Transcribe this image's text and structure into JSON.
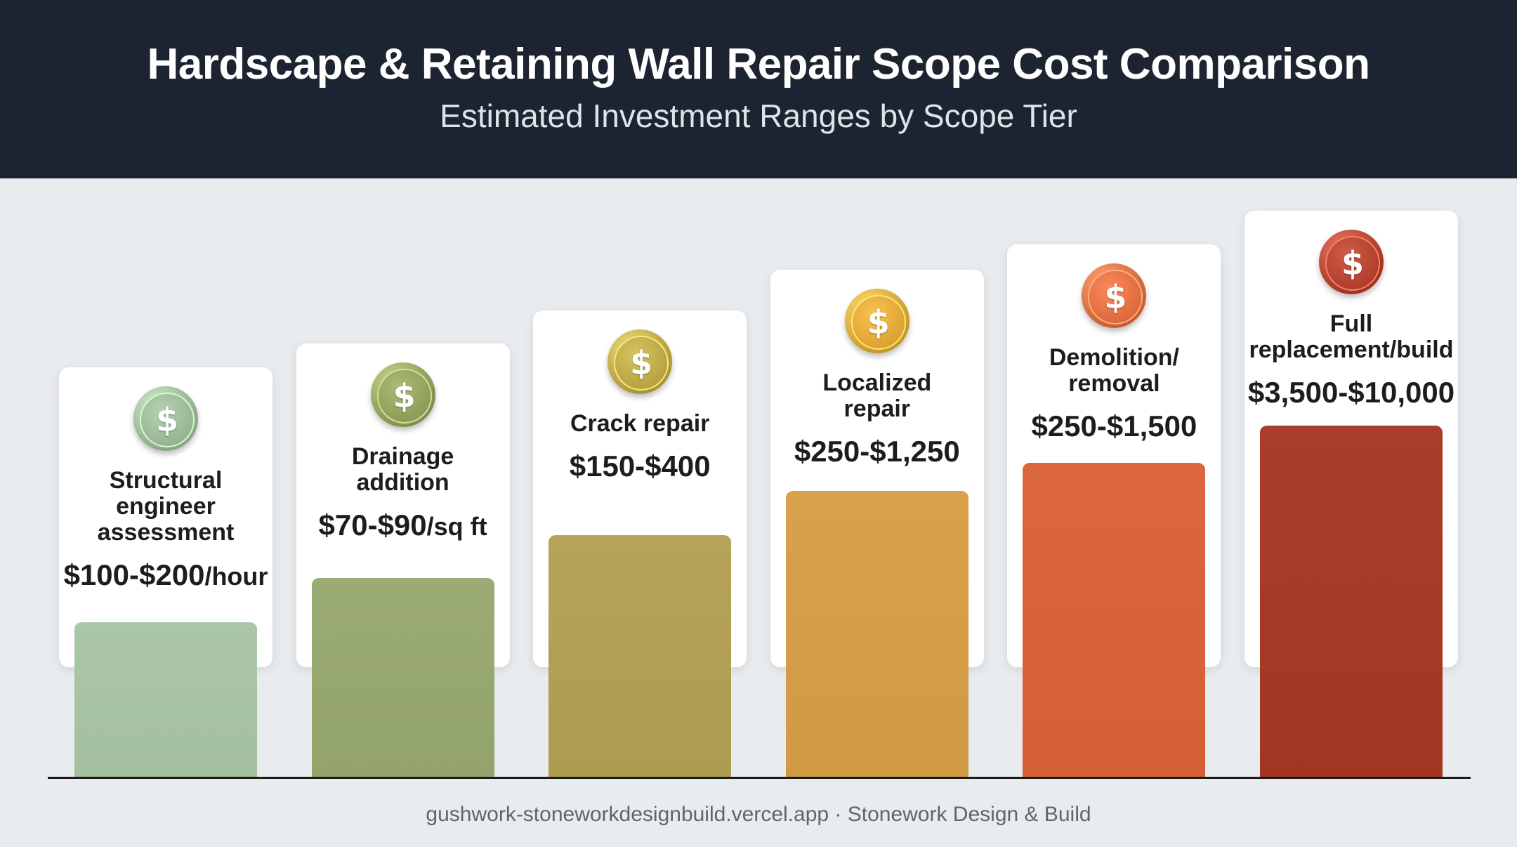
{
  "header": {
    "title": "Hardscape & Retaining Wall Repair Scope Cost Comparison",
    "subtitle": "Estimated Investment Ranges by Scope Tier"
  },
  "footer": {
    "text": "gushwork-stoneworkdesignbuild.vercel.app · Stonework Design & Build"
  },
  "chart_data": {
    "type": "bar",
    "title": "Hardscape & Retaining Wall Repair Scope Cost Comparison",
    "subtitle": "Estimated Investment Ranges by Scope Tier",
    "xlabel": "",
    "ylabel": "",
    "grid": false,
    "legend": "none",
    "categories": [
      "Structural engineer assessment",
      "Drainage addition",
      "Crack repair",
      "Localized repair",
      "Demolition/ removal",
      "Full replacement/build"
    ],
    "values": [
      1,
      2,
      3,
      4,
      5,
      6
    ],
    "items": [
      {
        "label_lines": [
          "Structural",
          "engineer",
          "assessment"
        ],
        "range": "$100-$200",
        "unit": "/hour",
        "level": 1,
        "color": "#a3bfa0",
        "coin_color": "#93b08f",
        "icon": "dollar-coin-icon"
      },
      {
        "label_lines": [
          "Drainage",
          "addition"
        ],
        "range": "$70-$90",
        "unit": "/sq ft",
        "level": 2,
        "color": "#93a36c",
        "coin_color": "#8a9a55",
        "icon": "dollar-coin-icon"
      },
      {
        "label_lines": [
          "Crack repair"
        ],
        "range": "$150-$400",
        "unit": "",
        "level": 3,
        "color": "#ad9c50",
        "coin_color": "#b5a03e",
        "icon": "dollar-coin-icon"
      },
      {
        "label_lines": [
          "Localized",
          "repair"
        ],
        "range": "$250-$1,250",
        "unit": "",
        "level": 4,
        "color": "#d09a45",
        "coin_color": "#d9a030",
        "icon": "dollar-coin-icon"
      },
      {
        "label_lines": [
          "Demolition/",
          "removal"
        ],
        "range": "$250-$1,500",
        "unit": "",
        "level": 5,
        "color": "#d45f37",
        "coin_color": "#d9673a",
        "icon": "dollar-coin-icon"
      },
      {
        "label_lines": [
          "Full",
          "replacement/build"
        ],
        "range": "$3,500-$10,000",
        "unit": "",
        "level": 6,
        "color": "#a33523",
        "coin_color": "#ad3b28",
        "icon": "dollar-coin-icon"
      }
    ]
  }
}
